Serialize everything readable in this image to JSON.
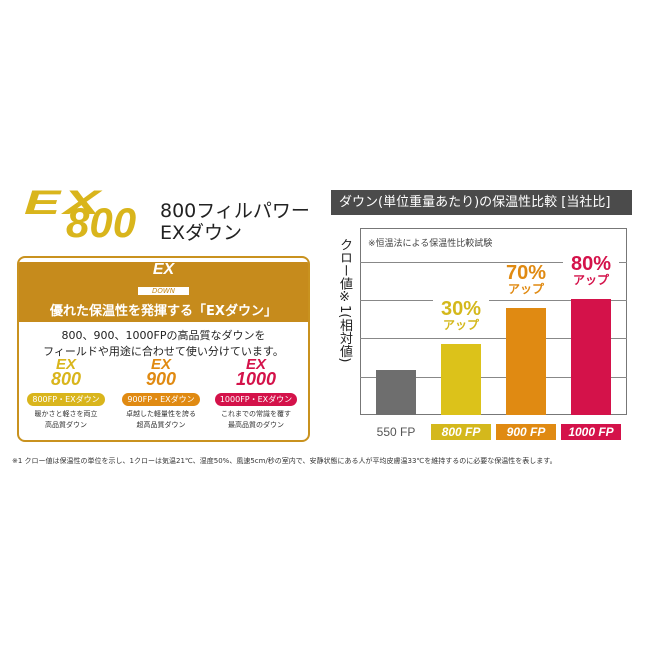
{
  "header": {
    "logo_ex": "EX",
    "logo_num": "800",
    "title_line1": "800フィルパワー",
    "title_line2": "EXダウン"
  },
  "panel": {
    "logo_ex": "EX",
    "logo_down": "DOWN",
    "title": "優れた保温性を発揮する「EXダウン」",
    "lead_line1": "800、900、1000FPの高品質なダウンを",
    "lead_line2": "フィールドや用途に合わせて使い分けています。",
    "variants": [
      {
        "ex": "EX",
        "num": "800",
        "badge": "800FP・EXダウン",
        "desc1": "暖かさと軽さを両立",
        "desc2": "高品質ダウン",
        "color": "#d9b51c"
      },
      {
        "ex": "EX",
        "num": "900",
        "badge": "900FP・EXダウン",
        "desc1": "卓越した軽量性を誇る",
        "desc2": "超高品質ダウン",
        "color": "#e08a12"
      },
      {
        "ex": "EX",
        "num": "1000",
        "badge": "1000FP・EXダウン",
        "desc1": "これまでの常識を覆す",
        "desc2": "最高品質のダウン",
        "color": "#d4124a"
      }
    ]
  },
  "chart_data": {
    "type": "bar",
    "title": "ダウン(単位重量あたり)の保温性比較 [当社比]",
    "note": "※恒温法による保温性比較試験",
    "ylabel": "クロー値※1(相対値)",
    "categories": [
      "550 FP",
      "800 FP",
      "900 FP",
      "1000 FP"
    ],
    "values": [
      100,
      130,
      170,
      180
    ],
    "ylim": [
      50,
      260
    ],
    "grid": true,
    "annotations": [
      null,
      {
        "pct": "30%",
        "text": "アップ"
      },
      {
        "pct": "70%",
        "text": "アップ"
      },
      {
        "pct": "80%",
        "text": "アップ"
      }
    ],
    "colors": [
      "#6e6e6e",
      "#dcc21a",
      "#e08a12",
      "#d4124a"
    ],
    "label_colors": [
      "#555555",
      "#d4b81c",
      "#e08a12",
      "#d4124a"
    ]
  },
  "footnote": "※1 クロー値は保温性の単位を示し、1クローは気温21℃、湿度50%、風速5cm/秒の室内で、安静状態にある人が平均皮膚温33℃を維持するのに必要な保温性を表します。"
}
